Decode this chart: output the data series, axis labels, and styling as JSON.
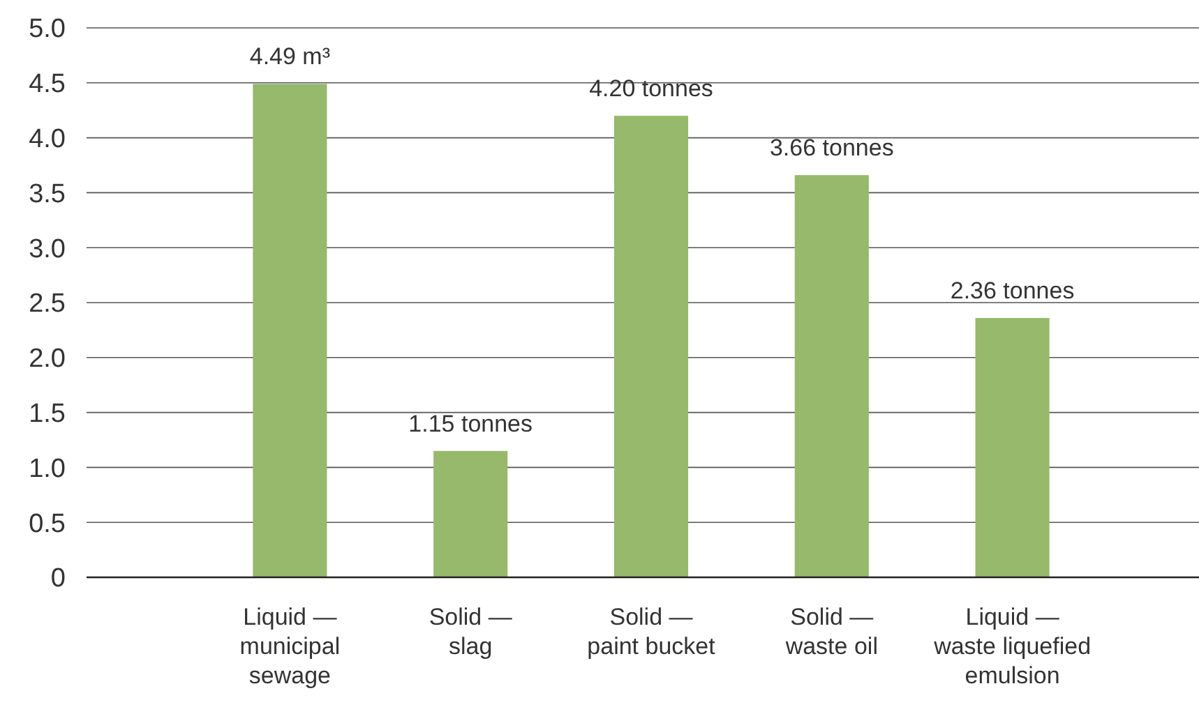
{
  "chart_data": {
    "type": "bar",
    "categories": [
      "Liquid —\nmunicipal\nsewage",
      "Solid —\nslag",
      "Solid —\npaint bucket",
      "Solid —\nwaste oil",
      "Liquid —\nwaste liquefied\nemulsion"
    ],
    "values": [
      4.49,
      1.15,
      4.2,
      3.66,
      2.36
    ],
    "value_labels": [
      "4.49 m³",
      "1.15 tonnes",
      "4.20 tonnes",
      "3.66 tonnes",
      "2.36 tonnes"
    ],
    "color": "#96b96b",
    "ylim": [
      0,
      5
    ],
    "yticks": [
      0,
      0.5,
      {
        "value": 1,
        "label": "1.0"
      },
      1.5,
      {
        "value": 2,
        "label": "2.0"
      },
      2.5,
      {
        "value": 3,
        "label": "3.0"
      },
      3.5,
      {
        "value": 4,
        "label": "4.0"
      },
      4.5,
      {
        "value": 5,
        "label": "5.0"
      }
    ],
    "grid": "y"
  }
}
